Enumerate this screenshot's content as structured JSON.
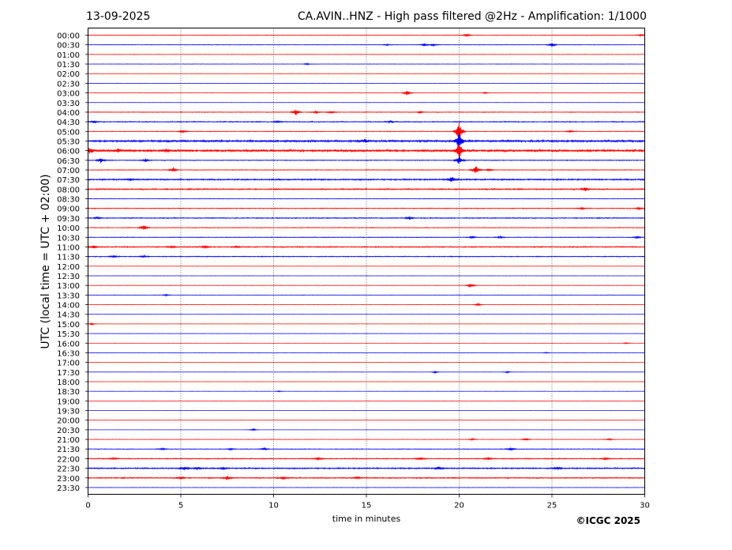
{
  "header": {
    "date": "13-09-2025",
    "title": "CA.AVIN..HNZ - High pass filtered @2Hz - Amplification: 1/1000"
  },
  "footer": {
    "copyright": "©ICGC 2025"
  },
  "chart_data": {
    "type": "line",
    "title": "CA.AVIN..HNZ - High pass filtered @2Hz - Amplification: 1/1000",
    "xlabel": "time in minutes",
    "ylabel": "UTC (local time = UTC + 02:00)",
    "xlim": [
      0,
      30
    ],
    "xticks": [
      0,
      5,
      10,
      15,
      20,
      25,
      30
    ],
    "vertical_gridlines": [
      5,
      10,
      15,
      20,
      25
    ],
    "series_colors": [
      "#ff0000",
      "#0000ff"
    ],
    "rows": [
      {
        "time": "00:00",
        "level": 0.4,
        "events": [
          [
            20.4,
            0.5
          ],
          [
            29.8,
            0.3
          ]
        ]
      },
      {
        "time": "00:30",
        "level": 0.4,
        "events": [
          [
            18.1,
            0.4
          ],
          [
            18.6,
            0.35
          ],
          [
            25.0,
            0.6
          ],
          [
            16.1,
            0.25
          ]
        ]
      },
      {
        "time": "01:00",
        "level": 0.3,
        "events": []
      },
      {
        "time": "01:30",
        "level": 0.3,
        "events": [
          [
            11.8,
            0.2
          ]
        ]
      },
      {
        "time": "02:00",
        "level": 0.25,
        "events": []
      },
      {
        "time": "02:30",
        "level": 0.2,
        "events": []
      },
      {
        "time": "03:00",
        "level": 0.25,
        "events": [
          [
            17.2,
            0.8
          ],
          [
            21.4,
            0.2
          ]
        ]
      },
      {
        "time": "03:30",
        "level": 0.2,
        "events": []
      },
      {
        "time": "04:00",
        "level": 0.5,
        "events": [
          [
            11.2,
            0.9
          ],
          [
            12.3,
            0.35
          ],
          [
            13.1,
            0.4
          ],
          [
            17.9,
            0.3
          ]
        ]
      },
      {
        "time": "04:30",
        "level": 0.7,
        "events": [
          [
            0.3,
            0.3
          ],
          [
            10.2,
            0.3
          ],
          [
            16.3,
            0.35
          ]
        ]
      },
      {
        "time": "05:00",
        "level": 0.5,
        "events": [
          [
            5.1,
            0.4
          ],
          [
            20.0,
            3.2
          ],
          [
            26.0,
            0.3
          ]
        ]
      },
      {
        "time": "05:30",
        "level": 1.4,
        "events": [
          [
            20.0,
            2.4
          ],
          [
            14.9,
            0.6
          ]
        ]
      },
      {
        "time": "06:00",
        "level": 1.5,
        "events": [
          [
            0.1,
            0.9
          ],
          [
            1.6,
            0.6
          ],
          [
            4.2,
            0.5
          ],
          [
            20.0,
            2.8
          ]
        ]
      },
      {
        "time": "06:30",
        "level": 0.6,
        "events": [
          [
            0.7,
            0.8
          ],
          [
            3.1,
            0.5
          ],
          [
            20.0,
            1.5
          ]
        ]
      },
      {
        "time": "07:00",
        "level": 0.5,
        "events": [
          [
            4.6,
            0.7
          ],
          [
            20.9,
            1.4
          ],
          [
            21.6,
            0.3
          ]
        ]
      },
      {
        "time": "07:30",
        "level": 1.0,
        "events": [
          [
            19.6,
            1.0
          ],
          [
            2.3,
            0.3
          ]
        ]
      },
      {
        "time": "08:00",
        "level": 0.9,
        "events": [
          [
            26.8,
            0.6
          ]
        ]
      },
      {
        "time": "08:30",
        "level": 0.4,
        "events": []
      },
      {
        "time": "09:00",
        "level": 0.6,
        "events": [
          [
            29.7,
            0.4
          ],
          [
            26.6,
            0.3
          ]
        ]
      },
      {
        "time": "09:30",
        "level": 0.7,
        "events": [
          [
            17.3,
            0.45
          ],
          [
            0.5,
            0.3
          ]
        ]
      },
      {
        "time": "10:00",
        "level": 0.5,
        "events": [
          [
            3.0,
            0.9
          ]
        ]
      },
      {
        "time": "10:30",
        "level": 0.5,
        "events": [
          [
            20.7,
            0.4
          ],
          [
            22.2,
            0.3
          ],
          [
            29.6,
            0.3
          ]
        ]
      },
      {
        "time": "11:00",
        "level": 0.8,
        "events": [
          [
            0.3,
            0.4
          ],
          [
            6.3,
            0.5
          ],
          [
            8.0,
            0.3
          ],
          [
            4.5,
            0.3
          ]
        ]
      },
      {
        "time": "11:30",
        "level": 0.6,
        "events": [
          [
            1.4,
            0.3
          ],
          [
            3.0,
            0.3
          ]
        ]
      },
      {
        "time": "12:00",
        "level": 0.2,
        "events": []
      },
      {
        "time": "12:30",
        "level": 0.2,
        "events": []
      },
      {
        "time": "13:00",
        "level": 0.3,
        "events": [
          [
            20.6,
            0.7
          ]
        ]
      },
      {
        "time": "13:30",
        "level": 0.3,
        "events": [
          [
            4.2,
            0.3
          ]
        ]
      },
      {
        "time": "14:00",
        "level": 0.15,
        "events": [
          [
            21.0,
            0.5
          ]
        ]
      },
      {
        "time": "14:30",
        "level": 0.2,
        "events": []
      },
      {
        "time": "15:00",
        "level": 0.15,
        "events": [
          [
            0.2,
            0.3
          ]
        ]
      },
      {
        "time": "15:30",
        "level": 0.15,
        "events": []
      },
      {
        "time": "16:00",
        "level": 0.15,
        "events": [
          [
            29.0,
            0.2
          ]
        ]
      },
      {
        "time": "16:30",
        "level": 0.15,
        "events": [
          [
            24.7,
            0.2
          ]
        ]
      },
      {
        "time": "17:00",
        "level": 0.15,
        "events": []
      },
      {
        "time": "17:30",
        "level": 0.2,
        "events": [
          [
            18.7,
            0.3
          ],
          [
            22.6,
            0.3
          ]
        ]
      },
      {
        "time": "18:00",
        "level": 0.1,
        "events": []
      },
      {
        "time": "18:30",
        "level": 0.15,
        "events": [
          [
            10.3,
            0.2
          ]
        ]
      },
      {
        "time": "19:00",
        "level": 0.1,
        "events": []
      },
      {
        "time": "19:30",
        "level": 0.1,
        "events": []
      },
      {
        "time": "20:00",
        "level": 0.1,
        "events": []
      },
      {
        "time": "20:30",
        "level": 0.1,
        "events": [
          [
            8.9,
            0.4
          ]
        ]
      },
      {
        "time": "21:00",
        "level": 0.3,
        "events": [
          [
            23.6,
            0.4
          ],
          [
            28.1,
            0.3
          ],
          [
            20.7,
            0.25
          ]
        ]
      },
      {
        "time": "21:30",
        "level": 0.5,
        "events": [
          [
            9.5,
            0.4
          ],
          [
            22.8,
            0.5
          ],
          [
            7.7,
            0.3
          ],
          [
            4.0,
            0.3
          ]
        ]
      },
      {
        "time": "22:00",
        "level": 0.7,
        "events": [
          [
            1.4,
            0.4
          ],
          [
            12.4,
            0.4
          ],
          [
            17.9,
            0.4
          ],
          [
            21.6,
            0.4
          ],
          [
            27.9,
            0.4
          ]
        ]
      },
      {
        "time": "22:30",
        "level": 0.9,
        "events": [
          [
            5.2,
            0.6
          ],
          [
            5.9,
            0.5
          ],
          [
            18.9,
            0.5
          ],
          [
            7.3,
            0.4
          ],
          [
            25.3,
            0.4
          ]
        ]
      },
      {
        "time": "23:00",
        "level": 0.8,
        "events": [
          [
            7.5,
            0.6
          ],
          [
            10.5,
            0.5
          ],
          [
            5.0,
            0.4
          ],
          [
            14.5,
            0.4
          ]
        ]
      },
      {
        "time": "23:30",
        "level": 0.3,
        "events": []
      }
    ]
  }
}
